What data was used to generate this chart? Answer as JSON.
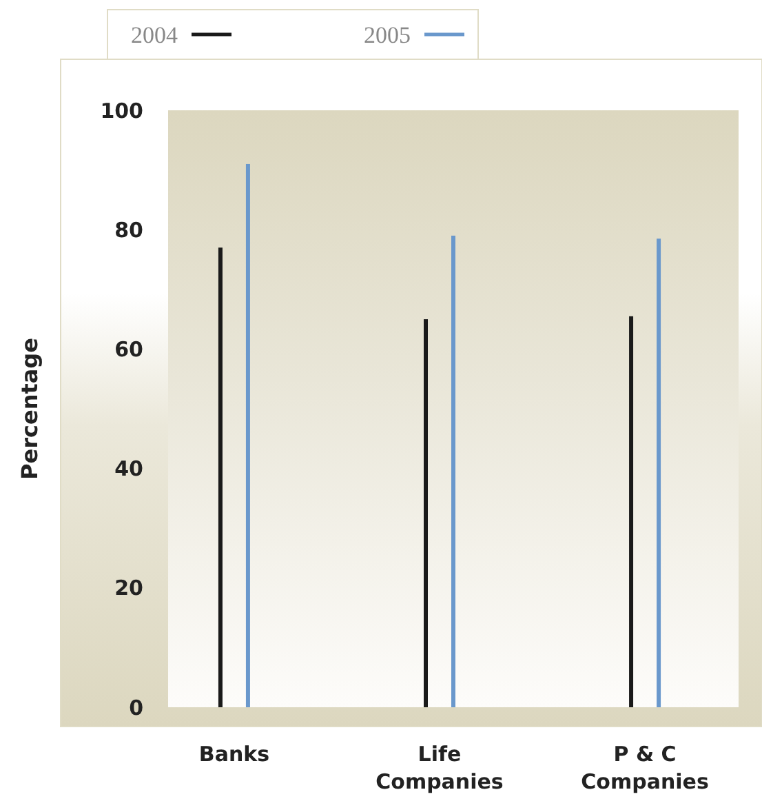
{
  "chart_data": {
    "type": "bar",
    "ylabel": "Percentage",
    "categories": [
      "Banks",
      "Life Companies",
      "P & C Companies"
    ],
    "series": [
      {
        "name": "2004",
        "color": "#1a1a1a",
        "values": [
          77,
          65,
          65.5
        ]
      },
      {
        "name": "2005",
        "color": "#6a98cc",
        "values": [
          91,
          79,
          78.5
        ]
      }
    ],
    "ylim": [
      0,
      100
    ],
    "yticks": [
      0,
      20,
      40,
      60,
      80,
      100
    ],
    "grid": false,
    "legend": "top"
  }
}
